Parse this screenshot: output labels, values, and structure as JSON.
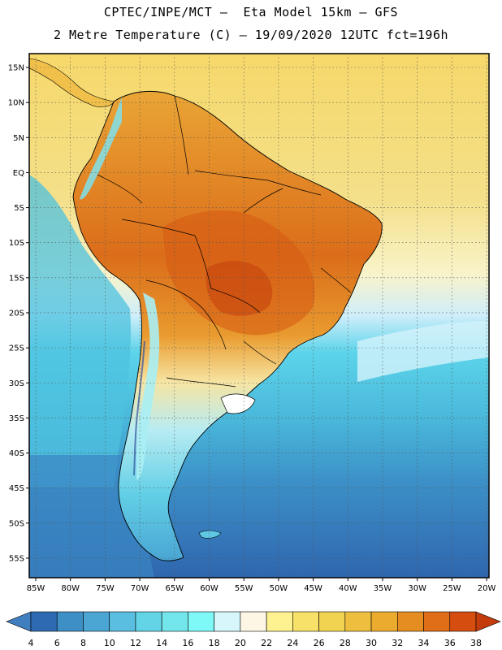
{
  "title": {
    "line1": "CPTEC/INPE/MCT –  Eta Model 15km – GFS",
    "line2": "2 Metre Temperature (C) – 19/09/2020 12UTC fct=196h"
  },
  "map": {
    "lat_labels": [
      "15N",
      "10N",
      "5N",
      "EQ",
      "5S",
      "10S",
      "15S",
      "20S",
      "25S",
      "30S",
      "35S",
      "40S",
      "45S",
      "50S",
      "55S"
    ],
    "lon_labels": [
      "85W",
      "80W",
      "75W",
      "70W",
      "65W",
      "60W",
      "55W",
      "50W",
      "45W",
      "40W",
      "35W",
      "30W",
      "25W",
      "20W"
    ]
  },
  "colorbar": {
    "labels": [
      "4",
      "6",
      "8",
      "10",
      "12",
      "14",
      "16",
      "18",
      "20",
      "22",
      "24",
      "26",
      "28",
      "30",
      "32",
      "34",
      "36",
      "38"
    ],
    "colors": [
      "#3f7fc0",
      "#2e6ab2",
      "#3e8fc6",
      "#4ba6d3",
      "#59bedf",
      "#63d3e6",
      "#73e6ec",
      "#7ff8f8",
      "#d6f6fb",
      "#fdf6e4",
      "#fdf28f",
      "#f8e169",
      "#f2d251",
      "#eebe3f",
      "#ebab2f",
      "#e68d22",
      "#e06d17",
      "#d64e0f",
      "#c43b0c"
    ]
  }
}
